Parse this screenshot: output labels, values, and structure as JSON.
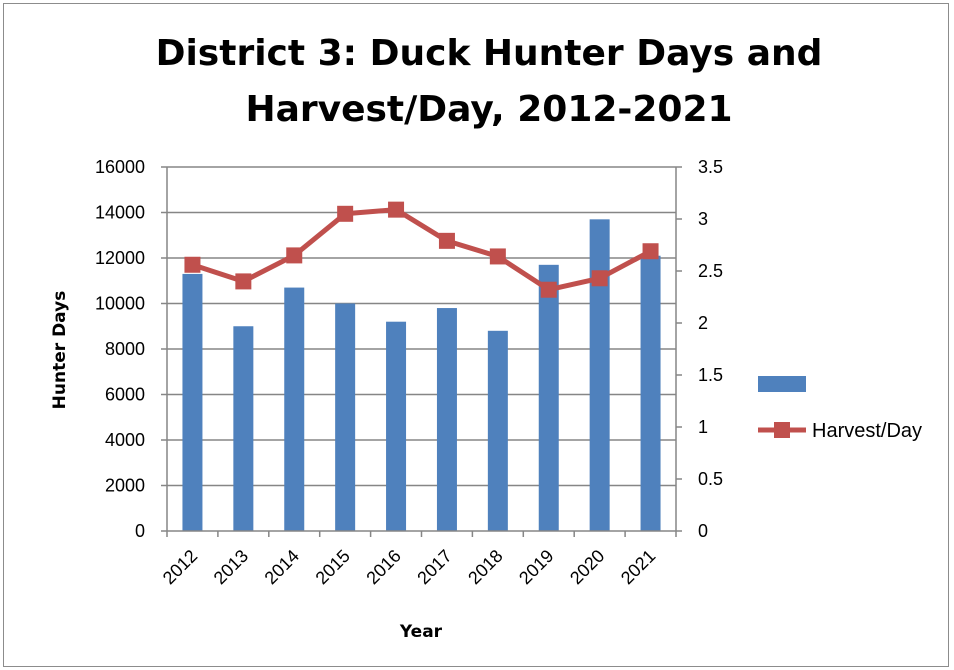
{
  "chart_data": {
    "type": "bar",
    "title_line1": "District 3:  Duck Hunter Days and",
    "title_line2": "Harvest/Day, 2012-2021",
    "xlabel": "Year",
    "ylabel": "Hunter Days",
    "y2label": "",
    "categories": [
      "2012",
      "2013",
      "2014",
      "2015",
      "2016",
      "2017",
      "2018",
      "2019",
      "2020",
      "2021"
    ],
    "ylim": [
      0,
      16000
    ],
    "y_ticks": [
      "0",
      "2000",
      "4000",
      "6000",
      "8000",
      "10000",
      "12000",
      "14000",
      "16000"
    ],
    "y2lim": [
      0,
      3.5
    ],
    "y2_ticks": [
      "0",
      "0.5",
      "1",
      "1.5",
      "2",
      "2.5",
      "3",
      "3.5"
    ],
    "grid": true,
    "legend_position": "right",
    "series": [
      {
        "name": "",
        "kind": "bar",
        "axis": "left",
        "color": "#4f81bd",
        "values": [
          11300,
          9000,
          10700,
          10000,
          9200,
          9800,
          8800,
          11700,
          13700,
          12100
        ]
      },
      {
        "name": "Harvest/Day",
        "kind": "line",
        "axis": "right",
        "color": "#c0504d",
        "marker": "square",
        "values": [
          2.56,
          2.4,
          2.65,
          3.05,
          3.09,
          2.79,
          2.64,
          2.32,
          2.43,
          2.69
        ]
      }
    ]
  }
}
